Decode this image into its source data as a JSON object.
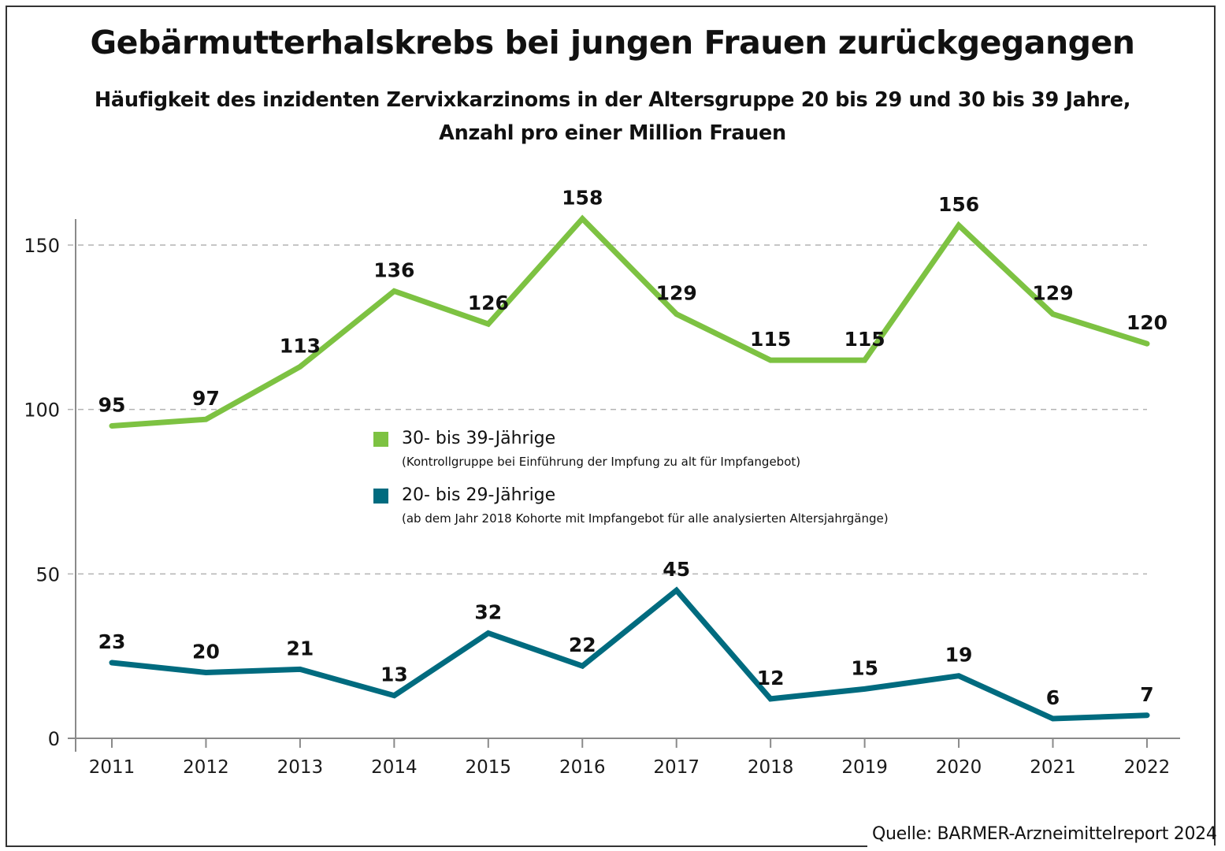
{
  "header": {
    "title": "Gebärmutterhalskrebs bei jungen Frauen zurückgegangen",
    "subtitle_line1": "Häufigkeit des inzidenten Zervixkarzinoms in der Altersgruppe 20 bis 29 und 30 bis 39 Jahre,",
    "subtitle_line2": "Anzahl pro einer Million Frauen"
  },
  "footer": {
    "source": "Quelle: BARMER-Arzneimittelreport 2024"
  },
  "legend": {
    "items": [
      {
        "label": "30- bis 39-Jährige",
        "note": "(Kontrollgruppe bei Einführung der Impfung zu alt für Impfangebot)",
        "color": "#7dc242"
      },
      {
        "label": "20- bis 29-Jährige",
        "note": "(ab dem Jahr 2018 Kohorte mit Impfangebot für alle analysierten Altersjahrgänge)",
        "color": "#006b7f"
      }
    ]
  },
  "chart_data": {
    "type": "line",
    "title": "Gebärmutterhalskrebs bei jungen Frauen zurückgegangen",
    "subtitle": "Häufigkeit des inzidenten Zervixkarzinoms in der Altersgruppe 20 bis 29 und 30 bis 39 Jahre, Anzahl pro einer Million Frauen",
    "xlabel": "",
    "ylabel": "",
    "x": [
      "2011",
      "2012",
      "2013",
      "2014",
      "2015",
      "2016",
      "2017",
      "2018",
      "2019",
      "2020",
      "2021",
      "2022"
    ],
    "ylim": [
      0,
      160
    ],
    "yticks": [
      0,
      50,
      100,
      150
    ],
    "grid": "horizontal-dashed",
    "legend_position": "center",
    "series": [
      {
        "name": "30- bis 39-Jährige",
        "color": "#7dc242",
        "values": [
          95,
          97,
          113,
          136,
          126,
          158,
          129,
          115,
          115,
          156,
          129,
          120
        ]
      },
      {
        "name": "20- bis 29-Jährige",
        "color": "#006b7f",
        "values": [
          23,
          20,
          21,
          13,
          32,
          22,
          45,
          12,
          15,
          19,
          6,
          7
        ]
      }
    ]
  }
}
